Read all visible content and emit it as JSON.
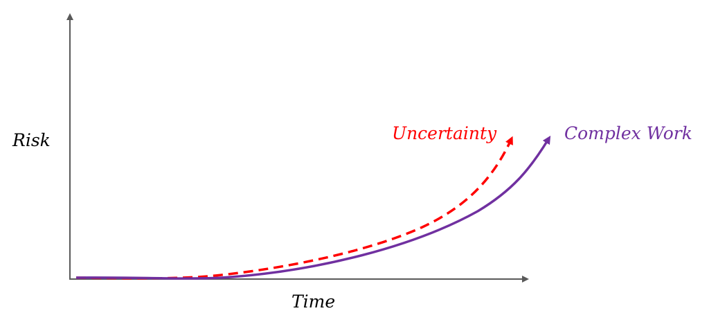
{
  "axes": {
    "y_label": "Risk",
    "x_label": "Time",
    "axis_color": "#595959"
  },
  "curves": [
    {
      "name": "Uncertainty",
      "color": "#ff0000",
      "style": "dashed"
    },
    {
      "name": "Complex Work",
      "color": "#7030a0",
      "style": "solid"
    }
  ]
}
